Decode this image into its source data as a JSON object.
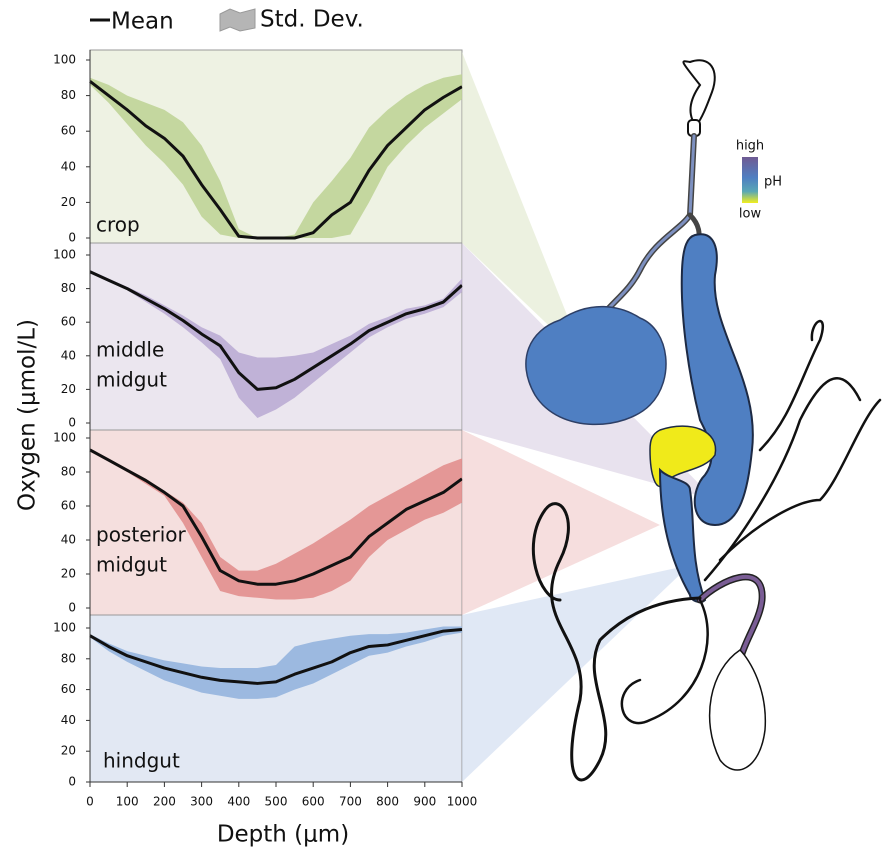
{
  "chart_data": {
    "type": "line",
    "legend": {
      "mean": "Mean",
      "std": "Std. Dev."
    },
    "xlabel": "Depth (μm)",
    "ylabel": "Oxygen (μmol/L)",
    "xlim": [
      0,
      1000
    ],
    "xticks": [
      0,
      100,
      200,
      300,
      400,
      500,
      600,
      700,
      800,
      900,
      1000
    ],
    "x": [
      0,
      50,
      100,
      150,
      200,
      250,
      300,
      350,
      400,
      450,
      500,
      550,
      600,
      650,
      700,
      750,
      800,
      850,
      900,
      950,
      1000
    ],
    "line_color": "#111111",
    "panels": [
      {
        "label": [
          "crop"
        ],
        "ylim": [
          0,
          100
        ],
        "yticks": [
          0,
          20,
          40,
          60,
          80,
          100
        ],
        "background": "#eef2e3",
        "band_color": "#bcd293",
        "mean": [
          88,
          80,
          72,
          63,
          56,
          46,
          30,
          16,
          1,
          0,
          0,
          0,
          3,
          13,
          20,
          38,
          52,
          62,
          72,
          79,
          85
        ],
        "upper": [
          90,
          86,
          80,
          76,
          72,
          65,
          52,
          32,
          5,
          0,
          0,
          2,
          20,
          32,
          45,
          62,
          72,
          80,
          86,
          90,
          92
        ],
        "lower": [
          86,
          76,
          64,
          52,
          42,
          30,
          12,
          2,
          0,
          0,
          0,
          0,
          0,
          0,
          2,
          20,
          40,
          52,
          62,
          70,
          78
        ]
      },
      {
        "label": [
          "middle",
          "midgut"
        ],
        "ylim": [
          0,
          100
        ],
        "yticks": [
          0,
          20,
          40,
          60,
          80,
          100
        ],
        "background": "#ebe6ef",
        "band_color": "#b9a8d2",
        "mean": [
          90,
          85,
          80,
          74,
          68,
          61,
          53,
          46,
          30,
          20,
          21,
          26,
          33,
          40,
          47,
          55,
          60,
          65,
          68,
          72,
          82
        ],
        "upper": [
          91,
          86,
          81,
          76,
          70,
          64,
          57,
          52,
          42,
          39,
          39,
          40,
          42,
          47,
          52,
          59,
          63,
          68,
          70,
          74,
          86
        ],
        "lower": [
          89,
          84,
          79,
          72,
          65,
          57,
          48,
          38,
          15,
          3,
          8,
          15,
          24,
          33,
          42,
          51,
          57,
          62,
          65,
          69,
          78
        ]
      },
      {
        "label": [
          "posterior",
          "midgut"
        ],
        "ylim": [
          0,
          100
        ],
        "yticks": [
          0,
          20,
          40,
          60,
          80,
          100
        ],
        "background": "#f5dfde",
        "band_color": "#e08b8a",
        "mean": [
          93,
          87,
          81,
          75,
          68,
          60,
          42,
          22,
          16,
          14,
          14,
          16,
          20,
          25,
          30,
          42,
          50,
          58,
          63,
          68,
          76
        ],
        "upper": [
          94,
          88,
          82,
          76,
          69,
          62,
          50,
          30,
          22,
          22,
          26,
          32,
          38,
          45,
          52,
          60,
          66,
          72,
          78,
          84,
          88
        ],
        "lower": [
          92,
          86,
          80,
          73,
          66,
          50,
          30,
          10,
          7,
          6,
          5,
          5,
          6,
          10,
          16,
          30,
          40,
          46,
          52,
          56,
          62
        ]
      },
      {
        "label": [
          "hindgut"
        ],
        "ylim": [
          0,
          100
        ],
        "yticks": [
          0,
          20,
          40,
          60,
          80,
          100
        ],
        "background": "#e2e8f3",
        "band_color": "#8fb0dc",
        "mean": [
          95,
          88,
          82,
          78,
          74,
          71,
          68,
          66,
          65,
          64,
          65,
          70,
          74,
          78,
          84,
          88,
          89,
          92,
          95,
          98,
          99
        ],
        "upper": [
          96,
          90,
          85,
          82,
          79,
          77,
          75,
          74,
          74,
          74,
          76,
          88,
          91,
          93,
          95,
          96,
          96,
          97,
          99,
          101,
          101
        ],
        "lower": [
          94,
          85,
          78,
          72,
          66,
          62,
          58,
          56,
          54,
          54,
          55,
          60,
          64,
          70,
          76,
          82,
          84,
          88,
          91,
          95,
          97
        ]
      }
    ]
  },
  "illustration": {
    "ph_legend": {
      "high": "high",
      "label": "pH",
      "low": "low"
    }
  }
}
